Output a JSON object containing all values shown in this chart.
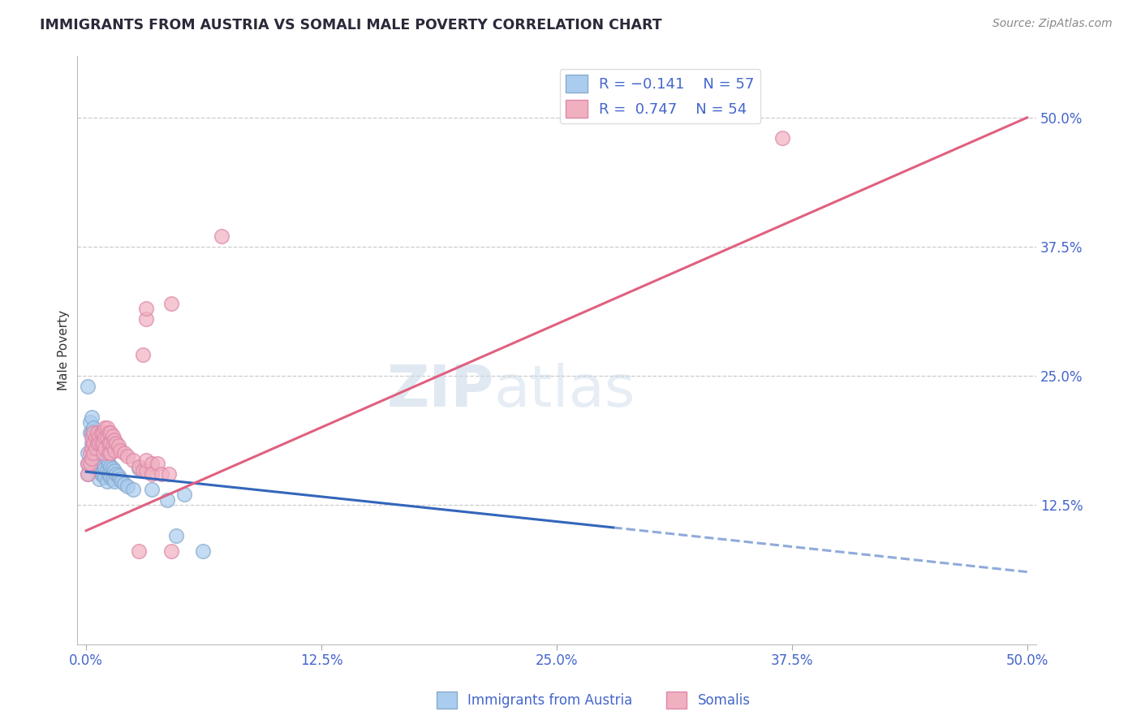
{
  "title": "IMMIGRANTS FROM AUSTRIA VS SOMALI MALE POVERTY CORRELATION CHART",
  "source": "Source: ZipAtlas.com",
  "ylabel_label": "Male Poverty",
  "y_ticks_right": [
    0.125,
    0.25,
    0.375,
    0.5
  ],
  "y_tick_labels_right": [
    "12.5%",
    "25.0%",
    "37.5%",
    "50.0%"
  ],
  "x_ticks": [
    0.0,
    0.125,
    0.25,
    0.375,
    0.5
  ],
  "x_tick_labels": [
    "0.0%",
    "12.5%",
    "25.0%",
    "37.5%",
    "50.0%"
  ],
  "xlim": [
    -0.005,
    0.505
  ],
  "ylim": [
    -0.01,
    0.56
  ],
  "blue_scatter": [
    [
      0.001,
      0.24
    ],
    [
      0.002,
      0.205
    ],
    [
      0.002,
      0.195
    ],
    [
      0.003,
      0.21
    ],
    [
      0.003,
      0.195
    ],
    [
      0.003,
      0.185
    ],
    [
      0.004,
      0.2
    ],
    [
      0.004,
      0.185
    ],
    [
      0.004,
      0.175
    ],
    [
      0.005,
      0.195
    ],
    [
      0.005,
      0.185
    ],
    [
      0.005,
      0.175
    ],
    [
      0.005,
      0.165
    ],
    [
      0.006,
      0.195
    ],
    [
      0.006,
      0.18
    ],
    [
      0.006,
      0.168
    ],
    [
      0.006,
      0.158
    ],
    [
      0.007,
      0.185
    ],
    [
      0.007,
      0.17
    ],
    [
      0.007,
      0.16
    ],
    [
      0.007,
      0.15
    ],
    [
      0.008,
      0.178
    ],
    [
      0.008,
      0.165
    ],
    [
      0.008,
      0.155
    ],
    [
      0.009,
      0.175
    ],
    [
      0.009,
      0.165
    ],
    [
      0.009,
      0.155
    ],
    [
      0.01,
      0.172
    ],
    [
      0.01,
      0.16
    ],
    [
      0.01,
      0.152
    ],
    [
      0.011,
      0.168
    ],
    [
      0.011,
      0.158
    ],
    [
      0.011,
      0.148
    ],
    [
      0.012,
      0.165
    ],
    [
      0.012,
      0.155
    ],
    [
      0.013,
      0.162
    ],
    [
      0.013,
      0.152
    ],
    [
      0.014,
      0.16
    ],
    [
      0.014,
      0.15
    ],
    [
      0.015,
      0.158
    ],
    [
      0.015,
      0.148
    ],
    [
      0.016,
      0.155
    ],
    [
      0.017,
      0.153
    ],
    [
      0.018,
      0.15
    ],
    [
      0.019,
      0.148
    ],
    [
      0.02,
      0.145
    ],
    [
      0.022,
      0.143
    ],
    [
      0.025,
      0.14
    ],
    [
      0.028,
      0.16
    ],
    [
      0.035,
      0.14
    ],
    [
      0.043,
      0.13
    ],
    [
      0.048,
      0.095
    ],
    [
      0.052,
      0.135
    ],
    [
      0.062,
      0.08
    ],
    [
      0.001,
      0.175
    ],
    [
      0.001,
      0.165
    ],
    [
      0.001,
      0.155
    ]
  ],
  "pink_scatter": [
    [
      0.001,
      0.155
    ],
    [
      0.001,
      0.165
    ],
    [
      0.002,
      0.165
    ],
    [
      0.002,
      0.175
    ],
    [
      0.003,
      0.17
    ],
    [
      0.003,
      0.18
    ],
    [
      0.003,
      0.19
    ],
    [
      0.004,
      0.175
    ],
    [
      0.004,
      0.185
    ],
    [
      0.004,
      0.195
    ],
    [
      0.005,
      0.18
    ],
    [
      0.005,
      0.19
    ],
    [
      0.006,
      0.185
    ],
    [
      0.006,
      0.195
    ],
    [
      0.007,
      0.19
    ],
    [
      0.007,
      0.185
    ],
    [
      0.008,
      0.195
    ],
    [
      0.008,
      0.185
    ],
    [
      0.009,
      0.195
    ],
    [
      0.009,
      0.185
    ],
    [
      0.009,
      0.175
    ],
    [
      0.01,
      0.2
    ],
    [
      0.01,
      0.19
    ],
    [
      0.01,
      0.18
    ],
    [
      0.011,
      0.2
    ],
    [
      0.011,
      0.19
    ],
    [
      0.012,
      0.195
    ],
    [
      0.012,
      0.185
    ],
    [
      0.012,
      0.175
    ],
    [
      0.013,
      0.195
    ],
    [
      0.013,
      0.185
    ],
    [
      0.013,
      0.175
    ],
    [
      0.014,
      0.192
    ],
    [
      0.014,
      0.182
    ],
    [
      0.015,
      0.188
    ],
    [
      0.015,
      0.178
    ],
    [
      0.016,
      0.185
    ],
    [
      0.017,
      0.182
    ],
    [
      0.018,
      0.178
    ],
    [
      0.02,
      0.175
    ],
    [
      0.022,
      0.172
    ],
    [
      0.025,
      0.168
    ],
    [
      0.028,
      0.162
    ],
    [
      0.03,
      0.158
    ],
    [
      0.032,
      0.158
    ],
    [
      0.032,
      0.168
    ],
    [
      0.035,
      0.165
    ],
    [
      0.035,
      0.155
    ],
    [
      0.038,
      0.165
    ],
    [
      0.04,
      0.155
    ],
    [
      0.044,
      0.155
    ],
    [
      0.03,
      0.27
    ],
    [
      0.032,
      0.305
    ],
    [
      0.032,
      0.315
    ],
    [
      0.045,
      0.32
    ],
    [
      0.072,
      0.385
    ],
    [
      0.028,
      0.08
    ],
    [
      0.045,
      0.08
    ],
    [
      0.37,
      0.48
    ]
  ],
  "blue_line_solid": {
    "x": [
      0.0,
      0.28
    ],
    "y": [
      0.157,
      0.103
    ]
  },
  "blue_line_dashed": {
    "x": [
      0.28,
      0.5
    ],
    "y": [
      0.103,
      0.06
    ]
  },
  "pink_line": {
    "x": [
      0.0,
      0.5
    ],
    "y": [
      0.1,
      0.5
    ]
  },
  "title_color": "#2a2a3a",
  "source_color": "#888888",
  "axis_label_color": "#4466cc",
  "tick_color": "#4466cc",
  "blue_dot_color": "#aaccee",
  "blue_dot_edge": "#88aacc",
  "pink_dot_color": "#f0b0c0",
  "pink_dot_edge": "#dd88aa",
  "blue_line_color": "#3366bb",
  "pink_line_color": "#e06080",
  "grid_color": "#cccccc",
  "watermark_color": "#c8d8e8",
  "background": "#ffffff"
}
